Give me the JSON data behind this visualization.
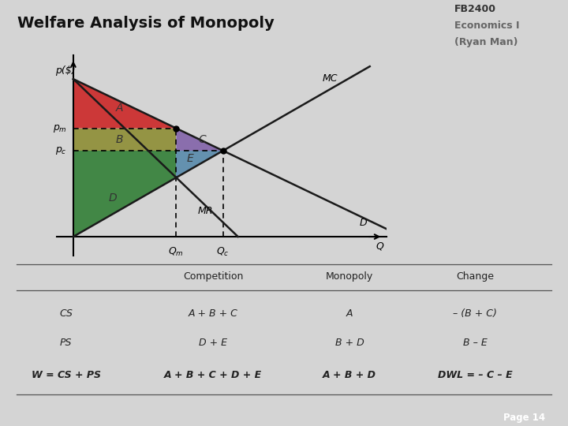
{
  "title": "Welfare Analysis of Monopoly",
  "title_fontsize": 14,
  "subtitle1": "FB2400",
  "subtitle2": "Economics I",
  "subtitle3": "(Ryan Man)",
  "bg_color": "#d4d4d4",
  "ylabel": "p($)",
  "xlabel": "Q",
  "p_intercept": 10.0,
  "mc_slope": 0.7,
  "mc_intercept": 0.5,
  "color_A": "#cc2222",
  "color_B": "#8b8b30",
  "color_C": "#8060a8",
  "color_D": "#2e7d32",
  "color_E": "#5588aa",
  "line_color": "#1a1a1a",
  "page_text": "Page 14",
  "table_headers": [
    "",
    "Competition",
    "Monopoly",
    "Change"
  ],
  "table_row1": [
    "CS",
    "A + B + C",
    "A",
    "– (B + C)"
  ],
  "table_row2": [
    "PS",
    "D + E",
    "B + D",
    "B – E"
  ],
  "table_row3": [
    "W = CS + PS",
    "A + B + C + D + E",
    "A + B + D",
    "DWL = – C – E"
  ]
}
